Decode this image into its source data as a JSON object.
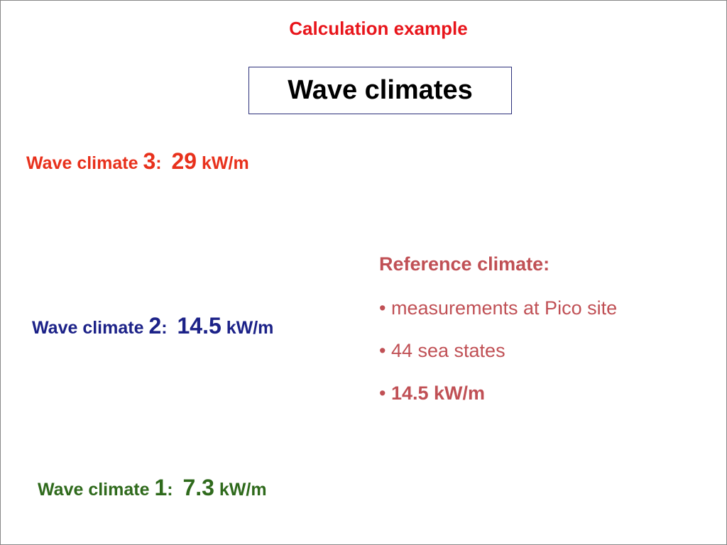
{
  "header": {
    "title": "Calculation example",
    "box_title": "Wave climates"
  },
  "climates": [
    {
      "label": "Wave climate",
      "number": "3",
      "colon": ":",
      "value": "29",
      "unit": "kW/m"
    },
    {
      "label": "Wave climate",
      "number": "2",
      "colon": ":",
      "value": "14.5",
      "unit": "kW/m"
    },
    {
      "label": "Wave climate",
      "number": "1",
      "colon": ":",
      "value": "7.3",
      "unit": "kW/m"
    }
  ],
  "reference": {
    "title": "Reference climate:",
    "items": [
      {
        "bullet": "•",
        "text": "measurements at Pico site"
      },
      {
        "bullet": "•",
        "text": "44 sea states"
      },
      {
        "bullet": "•",
        "text": "14.5 kW/m"
      }
    ]
  }
}
